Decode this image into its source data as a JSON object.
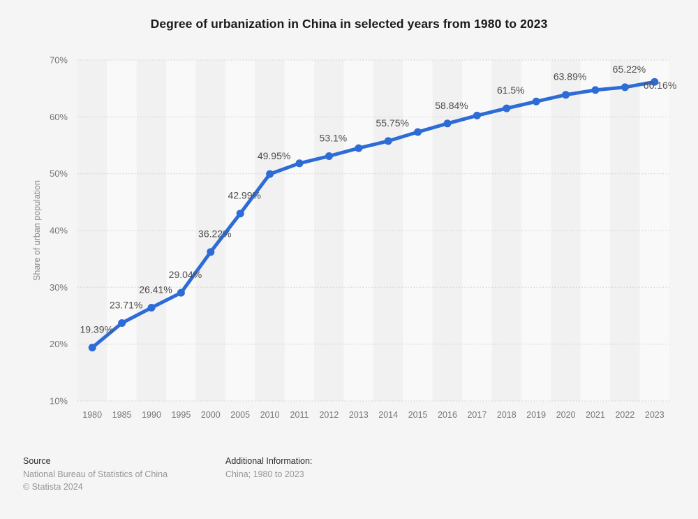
{
  "chart_data": {
    "type": "line",
    "title": "Degree of urbanization in China in selected years from 1980 to 2023",
    "ylabel": "Share of urban population",
    "xlabel": "",
    "categories": [
      "1980",
      "1985",
      "1990",
      "1995",
      "2000",
      "2005",
      "2010",
      "2011",
      "2012",
      "2013",
      "2014",
      "2015",
      "2016",
      "2017",
      "2018",
      "2019",
      "2020",
      "2021",
      "2022",
      "2023"
    ],
    "values": [
      19.39,
      23.71,
      26.41,
      29.04,
      36.22,
      42.99,
      49.95,
      51.83,
      53.1,
      54.49,
      55.75,
      57.33,
      58.84,
      60.24,
      61.5,
      62.71,
      63.89,
      64.72,
      65.22,
      66.16
    ],
    "point_labels": [
      "19.39%",
      "23.71%",
      "26.41%",
      "29.04%",
      "36.22%",
      "42.99%",
      "49.95%",
      "",
      "53.1%",
      "",
      "55.75%",
      "",
      "58.84%",
      "",
      "61.5%",
      "",
      "63.89%",
      "",
      "65.22%",
      "66.16%"
    ],
    "y_ticks": [
      {
        "v": 10,
        "label": "10%"
      },
      {
        "v": 20,
        "label": "20%"
      },
      {
        "v": 30,
        "label": "30%"
      },
      {
        "v": 40,
        "label": "40%"
      },
      {
        "v": 50,
        "label": "50%"
      },
      {
        "v": 60,
        "label": "60%"
      },
      {
        "v": 70,
        "label": "70%"
      }
    ],
    "ylim": [
      10,
      70
    ],
    "grid": "horizontal-dotted",
    "legend": "none",
    "line_color": "#2d6cd6",
    "data_label_color": "#4d4d4d",
    "tick_label_color": "#767676",
    "axis_title_color": "#8c8c8c"
  },
  "footer": {
    "source_label": "Source",
    "source_name": "National Bureau of Statistics of China",
    "copyright": "© Statista 2024",
    "additional_info_label": "Additional Information:",
    "additional_info_value": "China; 1980 to 2023"
  }
}
